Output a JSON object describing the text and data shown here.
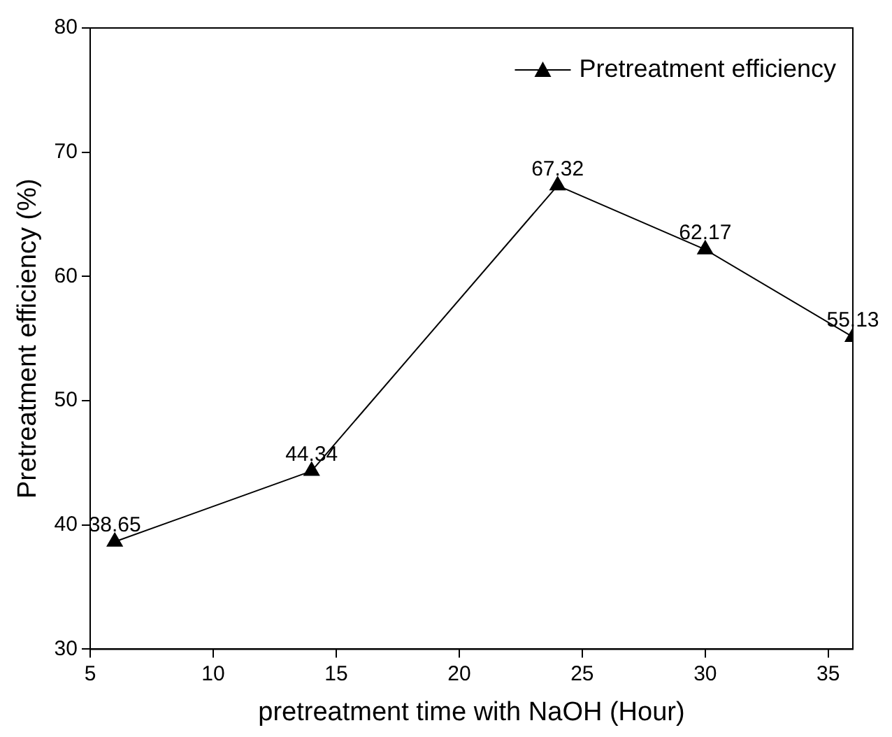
{
  "chart_data": {
    "type": "line",
    "xlabel": "pretreatment time with NaOH (Hour)",
    "ylabel": "Pretreatment efficiency (%)",
    "x": [
      6,
      14,
      24,
      30,
      36
    ],
    "series": [
      {
        "name": "Pretreatment efficiency",
        "color": "#000000",
        "values": [
          38.65,
          44.34,
          67.32,
          62.17,
          55.13
        ]
      }
    ],
    "xlim": [
      5,
      36
    ],
    "xticks": [
      5,
      10,
      15,
      20,
      25,
      30,
      35
    ],
    "ylim": [
      30,
      80
    ],
    "yticks": [
      30,
      40,
      50,
      60,
      70,
      80
    ],
    "marker": "triangle",
    "line_style": "solid",
    "grid": false,
    "legend": "top right",
    "data_labels": true
  }
}
